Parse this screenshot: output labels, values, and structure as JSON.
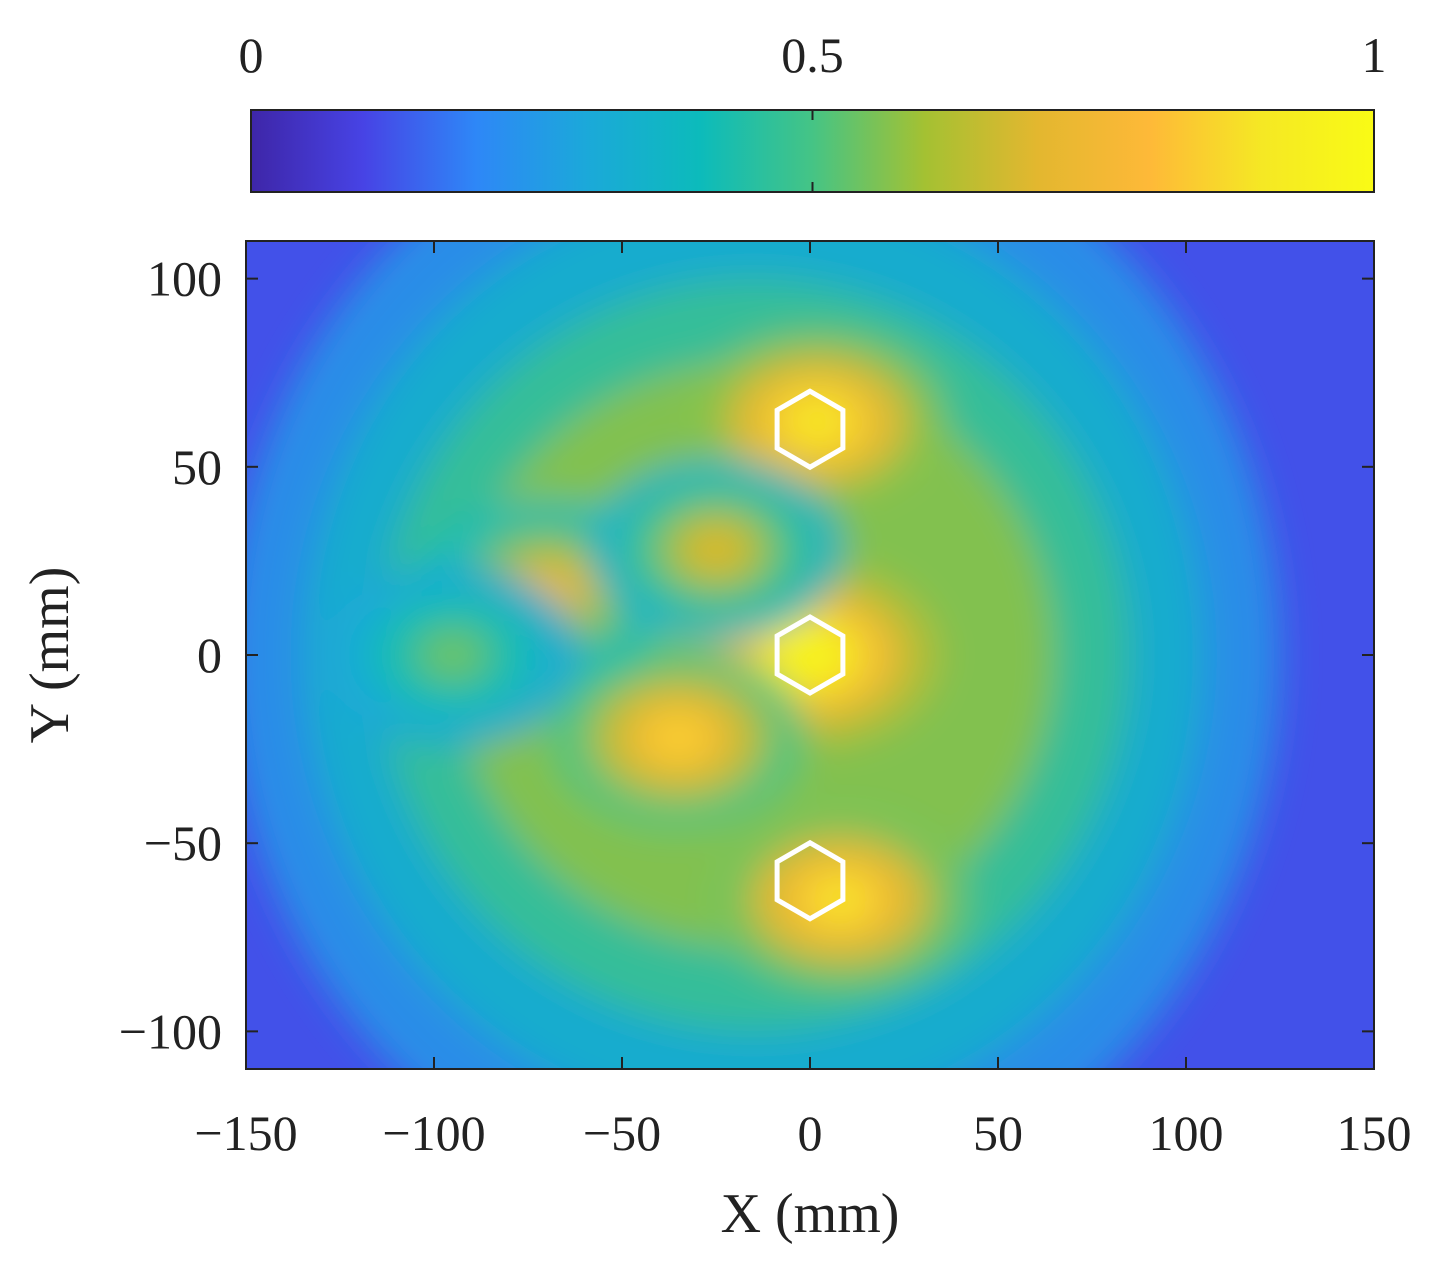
{
  "chart_data": {
    "type": "heatmap",
    "title": "",
    "xlabel": "X (mm)",
    "ylabel": "Y (mm)",
    "xlim": [
      -150,
      150
    ],
    "ylim": [
      -110,
      110
    ],
    "xticks": [
      -150,
      -100,
      -50,
      0,
      50,
      100,
      150
    ],
    "xtick_labels": [
      "−150",
      "−100",
      "−50",
      "0",
      "50",
      "100",
      "150"
    ],
    "yticks": [
      100,
      50,
      0,
      -50,
      -100
    ],
    "ytick_labels": [
      "100",
      "50",
      "0",
      "−50",
      "−100"
    ],
    "colorbar": {
      "placement": "top",
      "range": [
        0,
        1
      ],
      "ticks": [
        0,
        0.5,
        1
      ],
      "tick_labels": [
        "0",
        "0.5",
        "1"
      ],
      "colormap": "parula",
      "colors": [
        "#3e26a8",
        "#4743e5",
        "#2e87f7",
        "#1ba9d9",
        "#0cbbbb",
        "#45c485",
        "#a4c132",
        "#e3b72f",
        "#feb938",
        "#f5e824",
        "#f9fb15"
      ]
    },
    "background_level": 0.12,
    "intensity_peaks": [
      {
        "x": 0,
        "y": 0,
        "value": 0.98
      },
      {
        "x": 2,
        "y": 62,
        "value": 0.92
      },
      {
        "x": 8,
        "y": -65,
        "value": 0.9
      },
      {
        "x": -35,
        "y": -22,
        "value": 0.85
      },
      {
        "x": -70,
        "y": 17,
        "value": 0.75
      },
      {
        "x": -25,
        "y": 28,
        "value": 0.7
      },
      {
        "x": -95,
        "y": 0,
        "value": 0.55
      }
    ],
    "markers": [
      {
        "shape": "hexagon",
        "x": 0,
        "y": 60,
        "color": "#ffffff"
      },
      {
        "shape": "hexagon",
        "x": 0,
        "y": 0,
        "color": "#ffffff"
      },
      {
        "shape": "hexagon",
        "x": 0,
        "y": -60,
        "color": "#ffffff"
      }
    ]
  }
}
